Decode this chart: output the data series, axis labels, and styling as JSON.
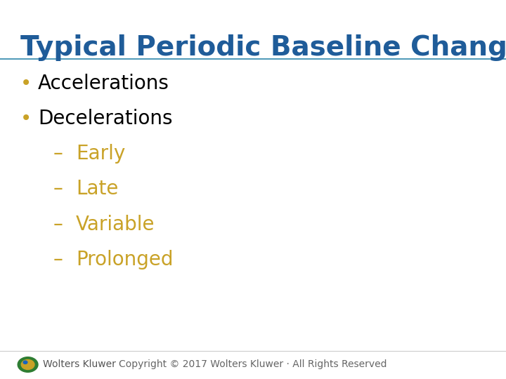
{
  "title": "Typical Periodic Baseline Changes",
  "title_color": "#1F5C99",
  "title_fontsize": 28,
  "bg_color": "#FFFFFF",
  "line_color": "#2E86AB",
  "bullet_color": "#C9A227",
  "bullet_items": [
    {
      "text": "Accelerations",
      "level": 0
    },
    {
      "text": "Decelerations",
      "level": 0
    },
    {
      "text": "Early",
      "level": 1
    },
    {
      "text": "Late",
      "level": 1
    },
    {
      "text": "Variable",
      "level": 1
    },
    {
      "text": "Prolonged",
      "level": 1
    }
  ],
  "text_color": "#000000",
  "sub_text_color": "#C9A227",
  "bullet_fontsize": 20,
  "sub_bullet_fontsize": 20,
  "footer_text": "Copyright © 2017 Wolters Kluwer · All Rights Reserved",
  "footer_color": "#666666",
  "footer_fontsize": 10,
  "wk_text": "Wolters Kluwer",
  "wk_color": "#555555",
  "wk_fontsize": 10,
  "title_line_color": "#2E86AB",
  "footer_line_color": "#CCCCCC"
}
